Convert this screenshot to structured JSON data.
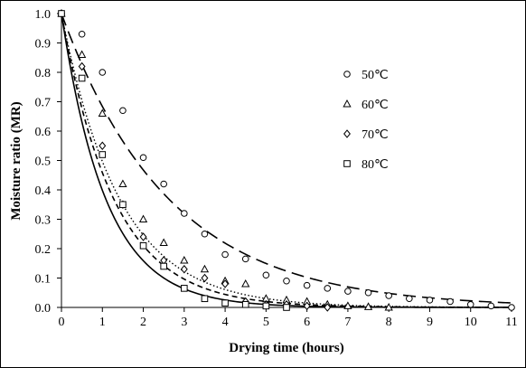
{
  "chart_data": {
    "type": "scatter",
    "title": "",
    "xlabel": "Drying time (hours)",
    "ylabel": "Moisture ratio (MR)",
    "xlim": [
      0,
      11
    ],
    "ylim": [
      0,
      1.0
    ],
    "x_ticks": [
      "0",
      "1",
      "2",
      "3",
      "4",
      "5",
      "6",
      "7",
      "8",
      "9",
      "10",
      "11"
    ],
    "y_ticks": [
      "0.0",
      "0.1",
      "0.2",
      "0.3",
      "0.4",
      "0.5",
      "0.6",
      "0.7",
      "0.8",
      "0.9",
      "1.0"
    ],
    "grid": false,
    "legend_position": "right",
    "series": [
      {
        "name": "50℃",
        "marker": "circle",
        "line_style": "long-dash",
        "x": [
          0,
          0.5,
          1,
          1.5,
          2,
          2.5,
          3,
          3.5,
          4,
          4.5,
          5,
          5.5,
          6,
          6.5,
          7,
          7.5,
          8,
          8.5,
          9,
          9.5,
          10,
          10.5,
          11
        ],
        "y": [
          1.0,
          0.93,
          0.8,
          0.67,
          0.51,
          0.42,
          0.32,
          0.25,
          0.18,
          0.165,
          0.11,
          0.09,
          0.075,
          0.065,
          0.055,
          0.05,
          0.04,
          0.03,
          0.025,
          0.02,
          0.01,
          0.005,
          0.0
        ],
        "fit_k": 0.38
      },
      {
        "name": "60℃",
        "marker": "triangle",
        "line_style": "short-dash",
        "x": [
          0,
          0.5,
          1,
          1.5,
          2,
          2.5,
          3,
          3.5,
          4,
          4.5,
          5,
          5.5,
          6,
          6.5,
          7,
          7.5,
          8
        ],
        "y": [
          1.0,
          0.86,
          0.66,
          0.42,
          0.3,
          0.22,
          0.16,
          0.13,
          0.09,
          0.08,
          0.03,
          0.025,
          0.02,
          0.01,
          0.005,
          0.002,
          0.0
        ],
        "fit_k": 0.78
      },
      {
        "name": "70℃",
        "marker": "diamond",
        "line_style": "dotted",
        "x": [
          0,
          0.5,
          1,
          1.5,
          2,
          2.5,
          3,
          3.5,
          4,
          4.5,
          5,
          5.5,
          6,
          6.5
        ],
        "y": [
          1.0,
          0.82,
          0.55,
          0.35,
          0.24,
          0.16,
          0.13,
          0.1,
          0.08,
          0.02,
          0.01,
          0.01,
          0.005,
          0.0
        ],
        "fit_k": 0.7
      },
      {
        "name": "80℃",
        "marker": "square",
        "line_style": "solid",
        "x": [
          0,
          0.5,
          1,
          1.5,
          2,
          2.5,
          3,
          3.5,
          4,
          4.5,
          5,
          5.5
        ],
        "y": [
          1.0,
          0.78,
          0.52,
          0.35,
          0.21,
          0.14,
          0.065,
          0.03,
          0.015,
          0.01,
          0.005,
          0.0
        ],
        "fit_k": 0.92
      }
    ]
  }
}
